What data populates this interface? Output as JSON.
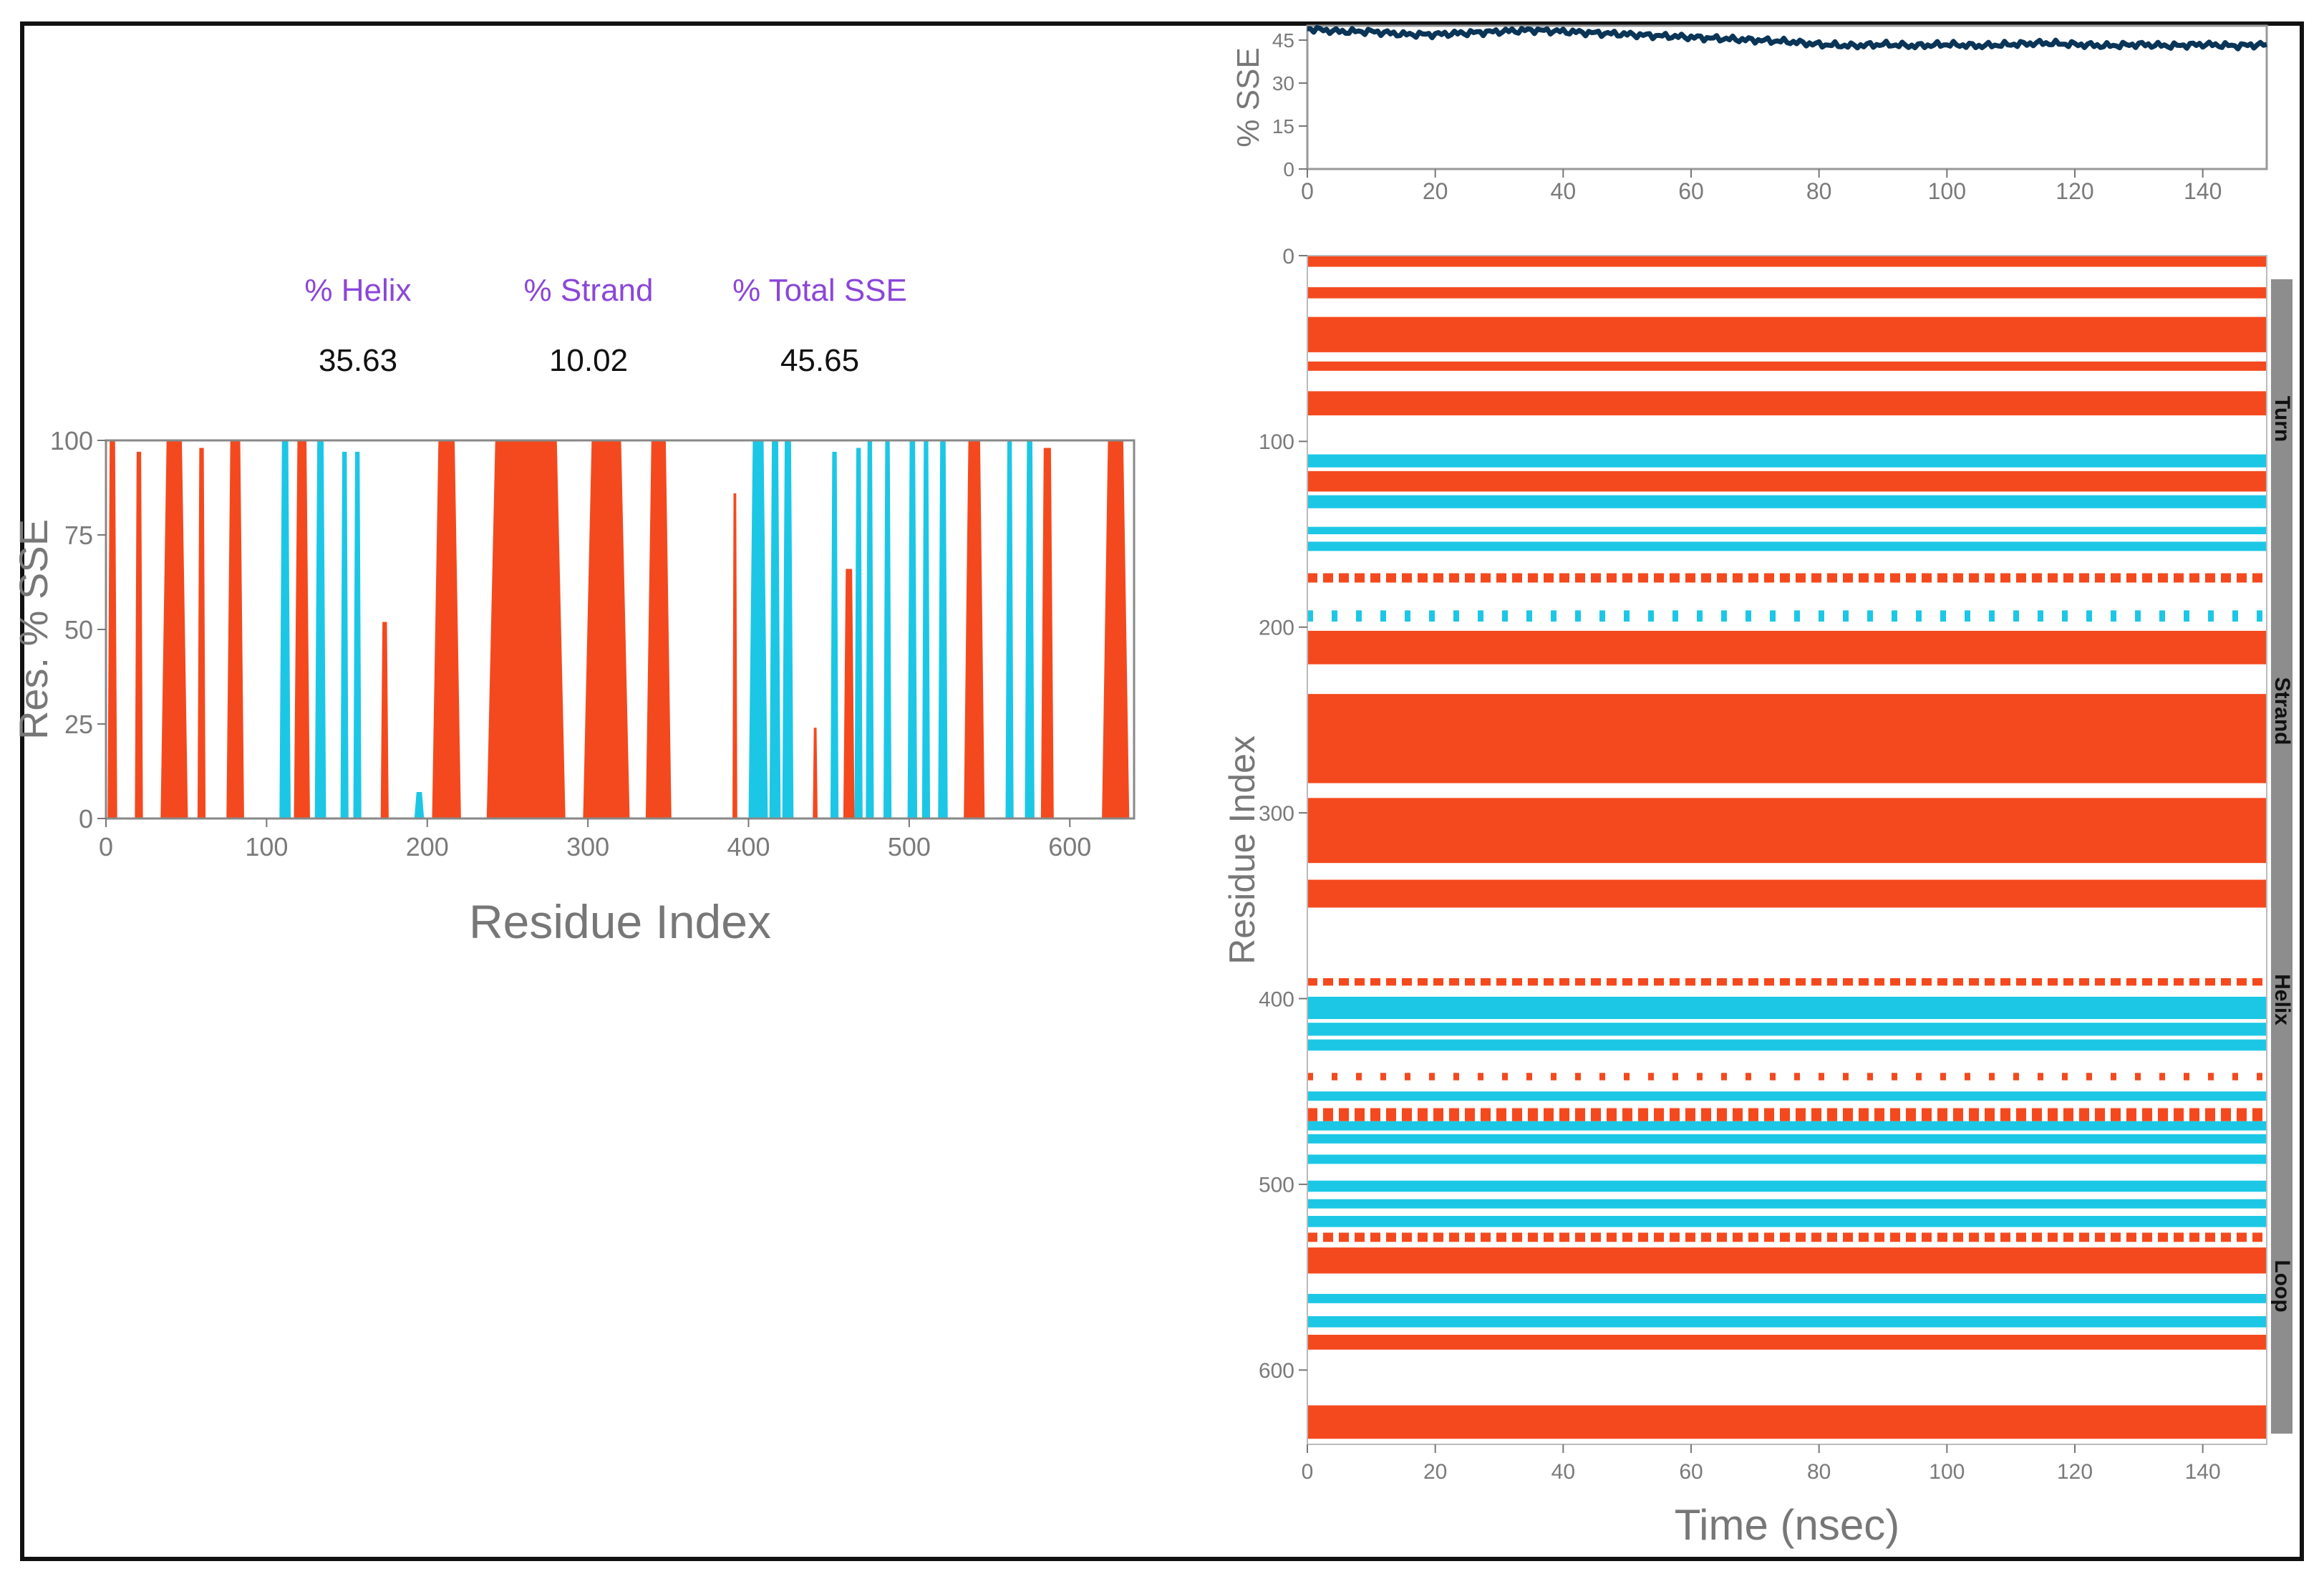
{
  "colors": {
    "helix": "#F4491E",
    "strand": "#1CC7E5",
    "timeline": "#0B3557",
    "axis": "#777777",
    "tick_text": "#7a7a7a",
    "label_purple": "#8B46D8",
    "value_black": "#111111",
    "sidebar": "#8d8d8d"
  },
  "stats": {
    "helix": {
      "label": "% Helix",
      "value": "35.63"
    },
    "strand": {
      "label": "% Strand",
      "value": "10.02"
    },
    "total": {
      "label": "% Total SSE",
      "value": "45.65"
    }
  },
  "chart_data": [
    {
      "id": "residue_sse",
      "type": "area",
      "title": "",
      "xlabel": "Residue Index",
      "ylabel": "Res. % SSE",
      "xlim": [
        0,
        640
      ],
      "ylim": [
        0,
        100
      ],
      "xticks": [
        0,
        100,
        200,
        300,
        400,
        500,
        600
      ],
      "yticks": [
        0,
        25,
        50,
        75,
        100
      ],
      "series": [
        {
          "name": "Helix",
          "segments": [
            {
              "start": 1,
              "end": 7,
              "peak": 100
            },
            {
              "start": 18,
              "end": 23,
              "peak": 97
            },
            {
              "start": 34,
              "end": 51,
              "peak": 100
            },
            {
              "start": 57,
              "end": 62,
              "peak": 98
            },
            {
              "start": 75,
              "end": 86,
              "peak": 100
            },
            {
              "start": 117,
              "end": 127,
              "peak": 100
            },
            {
              "start": 171,
              "end": 176,
              "peak": 52
            },
            {
              "start": 203,
              "end": 221,
              "peak": 100
            },
            {
              "start": 237,
              "end": 286,
              "peak": 100
            },
            {
              "start": 297,
              "end": 326,
              "peak": 100
            },
            {
              "start": 336,
              "end": 352,
              "peak": 100
            },
            {
              "start": 390,
              "end": 393,
              "peak": 86
            },
            {
              "start": 440,
              "end": 443,
              "peak": 24
            },
            {
              "start": 459,
              "end": 466,
              "peak": 66
            },
            {
              "start": 534,
              "end": 547,
              "peak": 100
            },
            {
              "start": 582,
              "end": 590,
              "peak": 98
            },
            {
              "start": 620,
              "end": 637,
              "peak": 100
            }
          ]
        },
        {
          "name": "Strand",
          "segments": [
            {
              "start": 108,
              "end": 115,
              "peak": 100
            },
            {
              "start": 130,
              "end": 137,
              "peak": 100
            },
            {
              "start": 146,
              "end": 151,
              "peak": 97
            },
            {
              "start": 154,
              "end": 159,
              "peak": 97
            },
            {
              "start": 192,
              "end": 198,
              "peak": 7
            },
            {
              "start": 400,
              "end": 412,
              "peak": 100
            },
            {
              "start": 413,
              "end": 420,
              "peak": 100
            },
            {
              "start": 421,
              "end": 428,
              "peak": 100
            },
            {
              "start": 451,
              "end": 456,
              "peak": 97
            },
            {
              "start": 466,
              "end": 471,
              "peak": 98
            },
            {
              "start": 473,
              "end": 478,
              "peak": 100
            },
            {
              "start": 484,
              "end": 489,
              "peak": 100
            },
            {
              "start": 499,
              "end": 505,
              "peak": 100
            },
            {
              "start": 508,
              "end": 513,
              "peak": 100
            },
            {
              "start": 518,
              "end": 524,
              "peak": 100
            },
            {
              "start": 560,
              "end": 565,
              "peak": 100
            },
            {
              "start": 572,
              "end": 578,
              "peak": 100
            }
          ]
        }
      ]
    },
    {
      "id": "total_sse_time",
      "type": "line",
      "xlabel": "",
      "ylabel": "% SSE",
      "xlim": [
        0,
        150
      ],
      "ylim": [
        0,
        50
      ],
      "xticks": [
        0,
        20,
        40,
        60,
        80,
        100,
        120,
        140
      ],
      "yticks": [
        0,
        15,
        30,
        45
      ],
      "series": [
        {
          "name": "Total SSE",
          "x": [
            0,
            5,
            10,
            15,
            20,
            25,
            30,
            35,
            40,
            45,
            50,
            55,
            60,
            65,
            70,
            75,
            80,
            85,
            90,
            95,
            100,
            105,
            110,
            115,
            120,
            125,
            130,
            135,
            140,
            145,
            150
          ],
          "values": [
            49,
            48,
            48,
            47,
            47,
            47.5,
            48,
            48.5,
            48,
            47.5,
            47,
            46.5,
            46,
            45.5,
            45,
            44.5,
            43.5,
            43,
            43.5,
            43,
            43.5,
            43,
            43.5,
            44,
            43.5,
            43,
            43.5,
            43,
            43.5,
            43,
            43.5
          ]
        }
      ]
    },
    {
      "id": "residue_time_map",
      "type": "heatmap",
      "xlabel": "Time (nsec)",
      "ylabel": "Residue Index",
      "xlim": [
        0,
        150
      ],
      "ylim": [
        0,
        640
      ],
      "xticks": [
        0,
        20,
        40,
        60,
        80,
        100,
        120,
        140
      ],
      "yticks": [
        0,
        100,
        200,
        300,
        400,
        500,
        600
      ],
      "sidebar_labels": [
        "Turn",
        "Strand",
        "Helix",
        "Loop"
      ],
      "bands": [
        {
          "type": "helix",
          "start": 0,
          "end": 6,
          "style": "solid"
        },
        {
          "type": "helix",
          "start": 17,
          "end": 23,
          "style": "solid"
        },
        {
          "type": "helix",
          "start": 33,
          "end": 52,
          "style": "solid"
        },
        {
          "type": "helix",
          "start": 57,
          "end": 62,
          "style": "solid"
        },
        {
          "type": "helix",
          "start": 73,
          "end": 86,
          "style": "solid"
        },
        {
          "type": "strand",
          "start": 107,
          "end": 114,
          "style": "solid"
        },
        {
          "type": "helix",
          "start": 116,
          "end": 127,
          "style": "solid"
        },
        {
          "type": "strand",
          "start": 129,
          "end": 136,
          "style": "solid"
        },
        {
          "type": "strand",
          "start": 146,
          "end": 150,
          "style": "solid"
        },
        {
          "type": "strand",
          "start": 154,
          "end": 159,
          "style": "solid"
        },
        {
          "type": "helix",
          "start": 171,
          "end": 176,
          "style": "dashed"
        },
        {
          "type": "strand",
          "start": 191,
          "end": 197,
          "style": "dotted"
        },
        {
          "type": "helix",
          "start": 202,
          "end": 220,
          "style": "solid"
        },
        {
          "type": "helix",
          "start": 236,
          "end": 284,
          "style": "solid"
        },
        {
          "type": "helix",
          "start": 292,
          "end": 327,
          "style": "solid"
        },
        {
          "type": "helix",
          "start": 336,
          "end": 351,
          "style": "solid"
        },
        {
          "type": "helix",
          "start": 389,
          "end": 393,
          "style": "dashed"
        },
        {
          "type": "strand",
          "start": 399,
          "end": 411,
          "style": "solid"
        },
        {
          "type": "strand",
          "start": 413,
          "end": 420,
          "style": "solid"
        },
        {
          "type": "strand",
          "start": 422,
          "end": 428,
          "style": "solid"
        },
        {
          "type": "helix",
          "start": 440,
          "end": 444,
          "style": "dotted"
        },
        {
          "type": "strand",
          "start": 450,
          "end": 455,
          "style": "solid"
        },
        {
          "type": "helix",
          "start": 459,
          "end": 466,
          "style": "dashed"
        },
        {
          "type": "strand",
          "start": 466,
          "end": 471,
          "style": "solid"
        },
        {
          "type": "strand",
          "start": 473,
          "end": 478,
          "style": "solid"
        },
        {
          "type": "strand",
          "start": 484,
          "end": 489,
          "style": "solid"
        },
        {
          "type": "strand",
          "start": 498,
          "end": 504,
          "style": "solid"
        },
        {
          "type": "strand",
          "start": 508,
          "end": 513,
          "style": "solid"
        },
        {
          "type": "strand",
          "start": 517,
          "end": 523,
          "style": "solid"
        },
        {
          "type": "helix",
          "start": 526,
          "end": 531,
          "style": "dashed"
        },
        {
          "type": "helix",
          "start": 534,
          "end": 548,
          "style": "solid"
        },
        {
          "type": "strand",
          "start": 559,
          "end": 564,
          "style": "solid"
        },
        {
          "type": "strand",
          "start": 571,
          "end": 577,
          "style": "solid"
        },
        {
          "type": "helix",
          "start": 581,
          "end": 589,
          "style": "solid"
        },
        {
          "type": "helix",
          "start": 619,
          "end": 637,
          "style": "solid"
        }
      ]
    }
  ]
}
